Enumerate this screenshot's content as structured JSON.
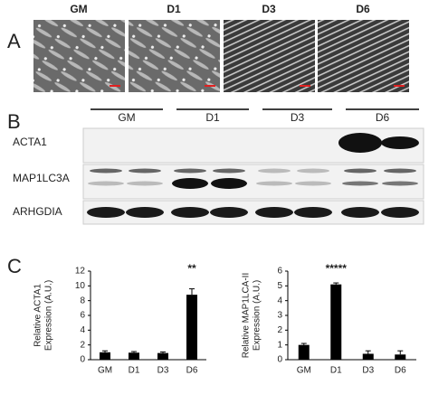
{
  "panels": {
    "a": "A",
    "b": "B",
    "c": "C"
  },
  "micrographs": [
    "GM",
    "D1",
    "D3",
    "D6"
  ],
  "blot": {
    "groups": [
      "GM",
      "D1",
      "D3",
      "D6"
    ],
    "rows": [
      "ACTA1",
      "MAP1LC3A",
      "ARHGDIA"
    ]
  },
  "chart_data": [
    {
      "type": "bar",
      "ylabel": [
        "Relative ACTA1",
        "Expression (A.U.)"
      ],
      "categories": [
        "GM",
        "D1",
        "D3",
        "D6"
      ],
      "values": [
        1.0,
        0.95,
        0.9,
        8.8
      ],
      "errors": [
        0.2,
        0.15,
        0.15,
        0.8
      ],
      "color": "#000000",
      "ylim": [
        0,
        12
      ],
      "yticks": [
        0,
        2,
        4,
        6,
        8,
        10,
        12
      ],
      "annotation": {
        "text": "**",
        "category": 3
      }
    },
    {
      "type": "bar",
      "ylabel": [
        "Relative MAP1LCA-II",
        "Expression (A.U.)"
      ],
      "categories": [
        "GM",
        "D1",
        "D3",
        "D6"
      ],
      "values": [
        1.0,
        5.1,
        0.4,
        0.35
      ],
      "errors": [
        0.1,
        0.1,
        0.2,
        0.25
      ],
      "color": "#000000",
      "ylim": [
        0,
        6
      ],
      "yticks": [
        0,
        1,
        2,
        3,
        4,
        5,
        6
      ],
      "annotation": {
        "text": "*****",
        "category": 1
      }
    }
  ]
}
